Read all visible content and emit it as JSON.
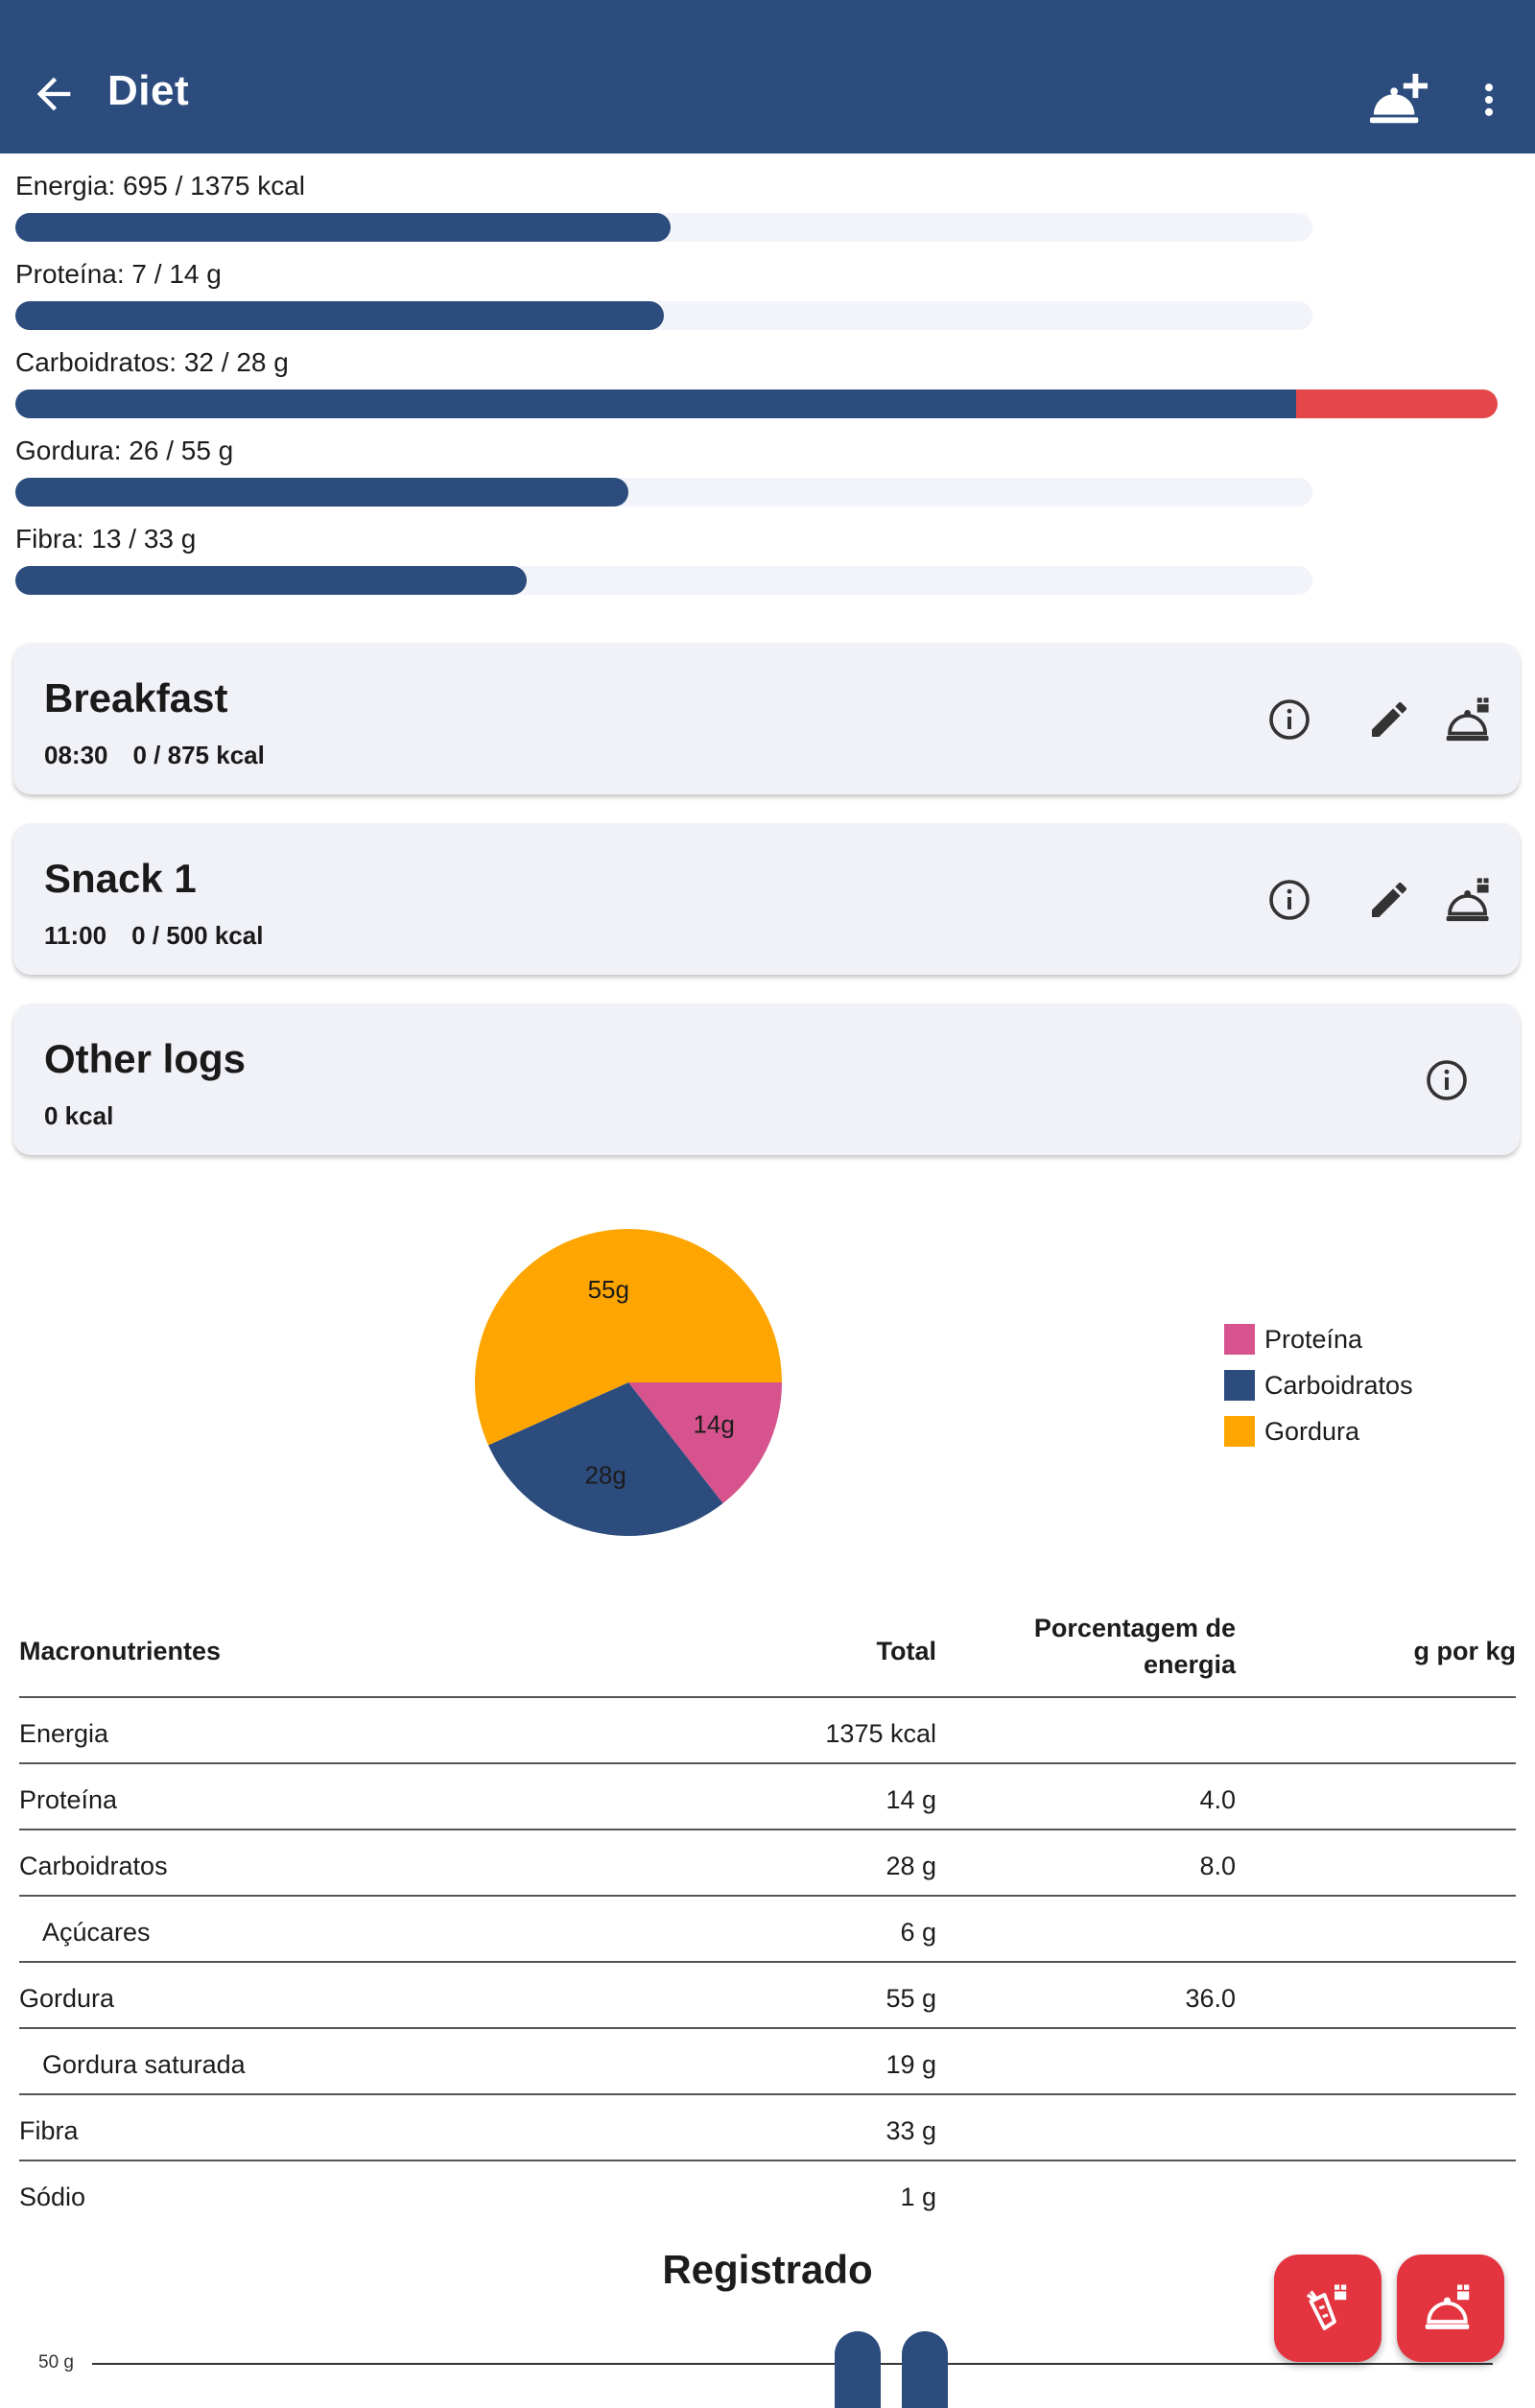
{
  "app_bar": {
    "title": "Diet",
    "icons": [
      "arrow-back-icon",
      "add-meal-icon",
      "more-vert-icon"
    ]
  },
  "goals": [
    {
      "label": "Energia: 695 / 1375 kcal",
      "fraction": 0.505
    },
    {
      "label": "Proteína: 7 / 14 g",
      "fraction": 0.5
    },
    {
      "label": "Carboidratos: 32 / 28 g",
      "fraction": 1.0,
      "over_fraction": 0.143
    },
    {
      "label": "Gordura: 26 / 55 g",
      "fraction": 0.473
    },
    {
      "label": "Fibra: 13 / 33 g",
      "fraction": 0.394
    }
  ],
  "meals": [
    {
      "name": "Breakfast",
      "time": "08:30",
      "energy": "0 / 875 kcal"
    },
    {
      "name": "Snack 1",
      "time": "11:00",
      "energy": "0 / 500 kcal"
    },
    {
      "name": "Other logs",
      "time": "",
      "energy": "0 kcal"
    }
  ],
  "pie": {
    "slices": [
      {
        "name": "Proteína",
        "value": 14,
        "label": "14g",
        "color": "#d6538d"
      },
      {
        "name": "Carboidratos",
        "value": 28,
        "label": "28g",
        "color": "#2c4c7e"
      },
      {
        "name": "Gordura",
        "value": 55,
        "label": "55g",
        "color": "#ffa500"
      }
    ]
  },
  "table": {
    "headers": [
      "Macronutrientes",
      "Total",
      "Porcentagem de energia",
      "g por kg"
    ],
    "rows": [
      {
        "name": "Energia",
        "total": "1375 kcal",
        "pct": "",
        "gkg": "",
        "indent": false
      },
      {
        "name": "Proteína",
        "total": "14 g",
        "pct": "4.0",
        "gkg": "",
        "indent": false
      },
      {
        "name": "Carboidratos",
        "total": "28 g",
        "pct": "8.0",
        "gkg": "",
        "indent": false
      },
      {
        "name": "Açúcares",
        "total": "6 g",
        "pct": "",
        "gkg": "",
        "indent": true
      },
      {
        "name": "Gordura",
        "total": "55 g",
        "pct": "36.0",
        "gkg": "",
        "indent": false
      },
      {
        "name": "Gordura saturada",
        "total": "19 g",
        "pct": "",
        "gkg": "",
        "indent": true
      },
      {
        "name": "Fibra",
        "total": "33 g",
        "pct": "",
        "gkg": "",
        "indent": false
      },
      {
        "name": "Sódio",
        "total": "1 g",
        "pct": "",
        "gkg": "",
        "indent": false
      }
    ]
  },
  "registered": {
    "title": "Registrado",
    "axis_label": "50 g"
  },
  "fabs": [
    "log-ingredient-icon",
    "log-meal-icon"
  ],
  "colors": {
    "primary": "#2c4c7e",
    "danger": "#e3343f",
    "over": "#e4474a"
  }
}
